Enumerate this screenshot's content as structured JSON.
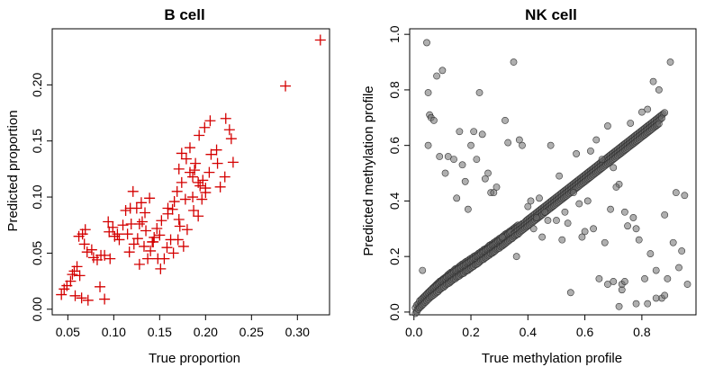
{
  "chart_data": [
    {
      "type": "scatter",
      "title": "B cell",
      "xlabel": "True proportion",
      "ylabel": "Predicted proportion",
      "xlim": [
        0.033,
        0.335
      ],
      "ylim": [
        -0.005,
        0.25
      ],
      "xticks": [
        "0.05",
        "0.10",
        "0.15",
        "0.20",
        "0.25",
        "0.30"
      ],
      "yticks": [
        "0.00",
        "0.05",
        "0.10",
        "0.15",
        "0.20"
      ],
      "marker": "plus",
      "color": "#d40000",
      "grid": false,
      "x": [
        0.325,
        0.287,
        0.222,
        0.226,
        0.228,
        0.205,
        0.199,
        0.212,
        0.193,
        0.206,
        0.189,
        0.183,
        0.188,
        0.174,
        0.179,
        0.171,
        0.186,
        0.192,
        0.213,
        0.2,
        0.216,
        0.23,
        0.204,
        0.221,
        0.183,
        0.174,
        0.169,
        0.166,
        0.178,
        0.164,
        0.171,
        0.172,
        0.194,
        0.186,
        0.196,
        0.2,
        0.197,
        0.187,
        0.192,
        0.159,
        0.152,
        0.147,
        0.159,
        0.15,
        0.143,
        0.158,
        0.165,
        0.17,
        0.18,
        0.176,
        0.13,
        0.125,
        0.134,
        0.139,
        0.128,
        0.144,
        0.135,
        0.131,
        0.142,
        0.148,
        0.121,
        0.118,
        0.113,
        0.119,
        0.106,
        0.101,
        0.11,
        0.115,
        0.126,
        0.122,
        0.133,
        0.14,
        0.137,
        0.155,
        0.162,
        0.151,
        0.128,
        0.117,
        0.099,
        0.094,
        0.104,
        0.095,
        0.09,
        0.096,
        0.086,
        0.078,
        0.071,
        0.069,
        0.066,
        0.062,
        0.068,
        0.076,
        0.082,
        0.06,
        0.057,
        0.055,
        0.063,
        0.053,
        0.049,
        0.046,
        0.043,
        0.058,
        0.065,
        0.072,
        0.085,
        0.09
      ],
      "y": [
        0.24,
        0.199,
        0.17,
        0.16,
        0.152,
        0.168,
        0.162,
        0.142,
        0.155,
        0.138,
        0.13,
        0.144,
        0.124,
        0.139,
        0.134,
        0.125,
        0.118,
        0.113,
        0.13,
        0.108,
        0.109,
        0.131,
        0.122,
        0.118,
        0.122,
        0.113,
        0.105,
        0.096,
        0.098,
        0.089,
        0.08,
        0.074,
        0.11,
        0.1,
        0.098,
        0.104,
        0.115,
        0.088,
        0.083,
        0.085,
        0.079,
        0.072,
        0.09,
        0.066,
        0.06,
        0.055,
        0.05,
        0.062,
        0.071,
        0.056,
        0.095,
        0.09,
        0.086,
        0.099,
        0.076,
        0.064,
        0.07,
        0.078,
        0.06,
        0.045,
        0.105,
        0.09,
        0.088,
        0.076,
        0.062,
        0.065,
        0.075,
        0.067,
        0.063,
        0.058,
        0.056,
        0.052,
        0.045,
        0.045,
        0.062,
        0.036,
        0.04,
        0.051,
        0.073,
        0.078,
        0.067,
        0.069,
        0.048,
        0.045,
        0.048,
        0.046,
        0.051,
        0.071,
        0.067,
        0.065,
        0.058,
        0.053,
        0.044,
        0.038,
        0.034,
        0.031,
        0.03,
        0.025,
        0.021,
        0.018,
        0.013,
        0.012,
        0.01,
        0.008,
        0.02,
        0.009
      ]
    },
    {
      "type": "scatter",
      "title": "NK cell",
      "xlabel": "True methylation profile",
      "ylabel": "Predicted methylation profile",
      "xlim": [
        -0.015,
        0.99
      ],
      "ylim": [
        -0.01,
        1.02
      ],
      "xticks": [
        "0.0",
        "0.2",
        "0.4",
        "0.6",
        "0.8"
      ],
      "yticks": [
        "0.0",
        "0.2",
        "0.4",
        "0.6",
        "0.8",
        "1.0"
      ],
      "marker": "circle",
      "color": "#000000",
      "grid": false,
      "bulk_x": [
        0.01,
        0.015,
        0.02,
        0.025,
        0.03,
        0.035,
        0.04,
        0.045,
        0.05,
        0.055,
        0.06,
        0.065,
        0.07,
        0.075,
        0.08,
        0.085,
        0.09,
        0.095,
        0.1,
        0.105,
        0.11,
        0.115,
        0.12,
        0.125,
        0.13,
        0.135,
        0.14,
        0.145,
        0.15,
        0.155,
        0.16,
        0.165,
        0.17,
        0.175,
        0.18,
        0.185,
        0.19,
        0.195,
        0.2,
        0.205,
        0.21,
        0.215,
        0.22,
        0.225,
        0.23,
        0.235,
        0.24,
        0.245,
        0.25,
        0.255,
        0.26,
        0.265,
        0.27,
        0.275,
        0.28,
        0.285,
        0.29,
        0.295,
        0.3,
        0.305,
        0.31,
        0.315,
        0.32,
        0.325,
        0.33,
        0.335,
        0.34,
        0.345,
        0.35,
        0.355,
        0.36,
        0.365,
        0.37,
        0.375,
        0.38,
        0.385,
        0.39,
        0.395,
        0.4,
        0.405,
        0.41,
        0.415,
        0.42,
        0.425,
        0.43,
        0.435,
        0.44,
        0.445,
        0.45,
        0.455,
        0.46,
        0.465,
        0.47,
        0.475,
        0.48,
        0.485,
        0.49,
        0.495,
        0.5,
        0.505,
        0.51,
        0.515,
        0.52,
        0.525,
        0.53,
        0.535,
        0.54,
        0.545,
        0.55,
        0.555,
        0.56,
        0.565,
        0.57,
        0.575,
        0.58,
        0.585,
        0.59,
        0.595,
        0.6,
        0.605,
        0.61,
        0.615,
        0.62,
        0.625,
        0.63,
        0.635,
        0.64,
        0.645,
        0.65,
        0.655,
        0.66,
        0.665,
        0.67,
        0.675,
        0.68,
        0.685,
        0.69,
        0.695,
        0.7,
        0.705,
        0.71,
        0.715,
        0.72,
        0.725,
        0.73,
        0.735,
        0.74,
        0.745,
        0.75,
        0.755,
        0.76,
        0.765,
        0.77,
        0.775,
        0.78,
        0.785,
        0.79,
        0.795,
        0.8,
        0.805,
        0.81,
        0.815,
        0.82,
        0.825,
        0.83,
        0.835,
        0.84,
        0.845,
        0.85,
        0.855,
        0.86,
        0.865,
        0.87
      ],
      "bulk_y": [
        0.005,
        0.015,
        0.02,
        0.03,
        0.035,
        0.04,
        0.045,
        0.05,
        0.055,
        0.06,
        0.065,
        0.07,
        0.075,
        0.078,
        0.082,
        0.086,
        0.09,
        0.094,
        0.1,
        0.104,
        0.108,
        0.11,
        0.115,
        0.12,
        0.122,
        0.125,
        0.13,
        0.134,
        0.138,
        0.14,
        0.145,
        0.148,
        0.15,
        0.155,
        0.158,
        0.16,
        0.165,
        0.168,
        0.17,
        0.175,
        0.178,
        0.182,
        0.185,
        0.19,
        0.192,
        0.195,
        0.2,
        0.205,
        0.208,
        0.21,
        0.215,
        0.218,
        0.222,
        0.225,
        0.23,
        0.232,
        0.236,
        0.24,
        0.245,
        0.248,
        0.25,
        0.255,
        0.258,
        0.262,
        0.266,
        0.27,
        0.274,
        0.278,
        0.282,
        0.285,
        0.29,
        0.294,
        0.298,
        0.3,
        0.305,
        0.31,
        0.314,
        0.318,
        0.322,
        0.326,
        0.33,
        0.334,
        0.338,
        0.342,
        0.346,
        0.35,
        0.354,
        0.358,
        0.362,
        0.366,
        0.37,
        0.374,
        0.378,
        0.382,
        0.386,
        0.39,
        0.394,
        0.398,
        0.402,
        0.406,
        0.41,
        0.414,
        0.418,
        0.422,
        0.426,
        0.43,
        0.434,
        0.438,
        0.442,
        0.446,
        0.45,
        0.454,
        0.458,
        0.462,
        0.466,
        0.47,
        0.474,
        0.478,
        0.482,
        0.486,
        0.49,
        0.494,
        0.498,
        0.502,
        0.506,
        0.51,
        0.514,
        0.518,
        0.522,
        0.526,
        0.53,
        0.534,
        0.538,
        0.542,
        0.546,
        0.55,
        0.554,
        0.558,
        0.562,
        0.566,
        0.57,
        0.574,
        0.578,
        0.582,
        0.586,
        0.59,
        0.594,
        0.598,
        0.602,
        0.606,
        0.61,
        0.614,
        0.618,
        0.622,
        0.626,
        0.63,
        0.634,
        0.638,
        0.642,
        0.646,
        0.65,
        0.654,
        0.658,
        0.662,
        0.666,
        0.67,
        0.674,
        0.678,
        0.682,
        0.686,
        0.69,
        0.694,
        0.698
      ],
      "outliers_x": [
        0.045,
        0.05,
        0.055,
        0.06,
        0.1,
        0.11,
        0.16,
        0.23,
        0.29,
        0.35,
        0.37,
        0.42,
        0.45,
        0.48,
        0.5,
        0.55,
        0.58,
        0.62,
        0.64,
        0.66,
        0.68,
        0.7,
        0.72,
        0.74,
        0.76,
        0.78,
        0.8,
        0.82,
        0.84,
        0.86,
        0.88,
        0.9,
        0.92,
        0.95,
        0.03,
        0.08,
        0.12,
        0.14,
        0.18,
        0.2,
        0.22,
        0.25,
        0.27,
        0.31,
        0.33,
        0.38,
        0.4,
        0.43,
        0.46,
        0.52,
        0.54,
        0.56,
        0.6,
        0.63,
        0.67,
        0.69,
        0.71,
        0.73,
        0.75,
        0.77,
        0.79,
        0.81,
        0.83,
        0.85,
        0.87,
        0.89,
        0.91,
        0.93,
        0.94,
        0.96,
        0.05,
        0.07,
        0.09,
        0.15,
        0.17,
        0.19,
        0.21,
        0.24,
        0.26,
        0.28,
        0.32,
        0.36,
        0.41,
        0.44,
        0.47,
        0.51,
        0.53,
        0.57,
        0.59,
        0.61,
        0.65,
        0.73,
        0.78,
        0.82,
        0.85,
        0.88,
        0.72,
        0.74,
        0.7,
        0.68
      ],
      "outliers_y": [
        0.97,
        0.79,
        0.71,
        0.7,
        0.87,
        0.5,
        0.65,
        0.79,
        0.45,
        0.9,
        0.62,
        0.3,
        0.27,
        0.6,
        0.33,
        0.07,
        0.39,
        0.58,
        0.62,
        0.55,
        0.67,
        0.52,
        0.46,
        0.36,
        0.68,
        0.3,
        0.72,
        0.73,
        0.83,
        0.8,
        0.35,
        0.9,
        0.43,
        0.42,
        0.15,
        0.85,
        0.56,
        0.55,
        0.47,
        0.6,
        0.55,
        0.48,
        0.43,
        0.27,
        0.61,
        0.6,
        0.38,
        0.34,
        0.36,
        0.26,
        0.32,
        0.43,
        0.29,
        0.3,
        0.25,
        0.37,
        0.45,
        0.08,
        0.31,
        0.34,
        0.26,
        0.12,
        0.21,
        0.15,
        0.05,
        0.12,
        0.25,
        0.16,
        0.22,
        0.1,
        0.6,
        0.69,
        0.56,
        0.41,
        0.53,
        0.37,
        0.65,
        0.64,
        0.5,
        0.43,
        0.69,
        0.2,
        0.4,
        0.41,
        0.33,
        0.49,
        0.36,
        0.57,
        0.27,
        0.4,
        0.12,
        0.1,
        0.03,
        0.03,
        0.05,
        0.06,
        0.02,
        0.11,
        0.11,
        0.1
      ]
    }
  ]
}
